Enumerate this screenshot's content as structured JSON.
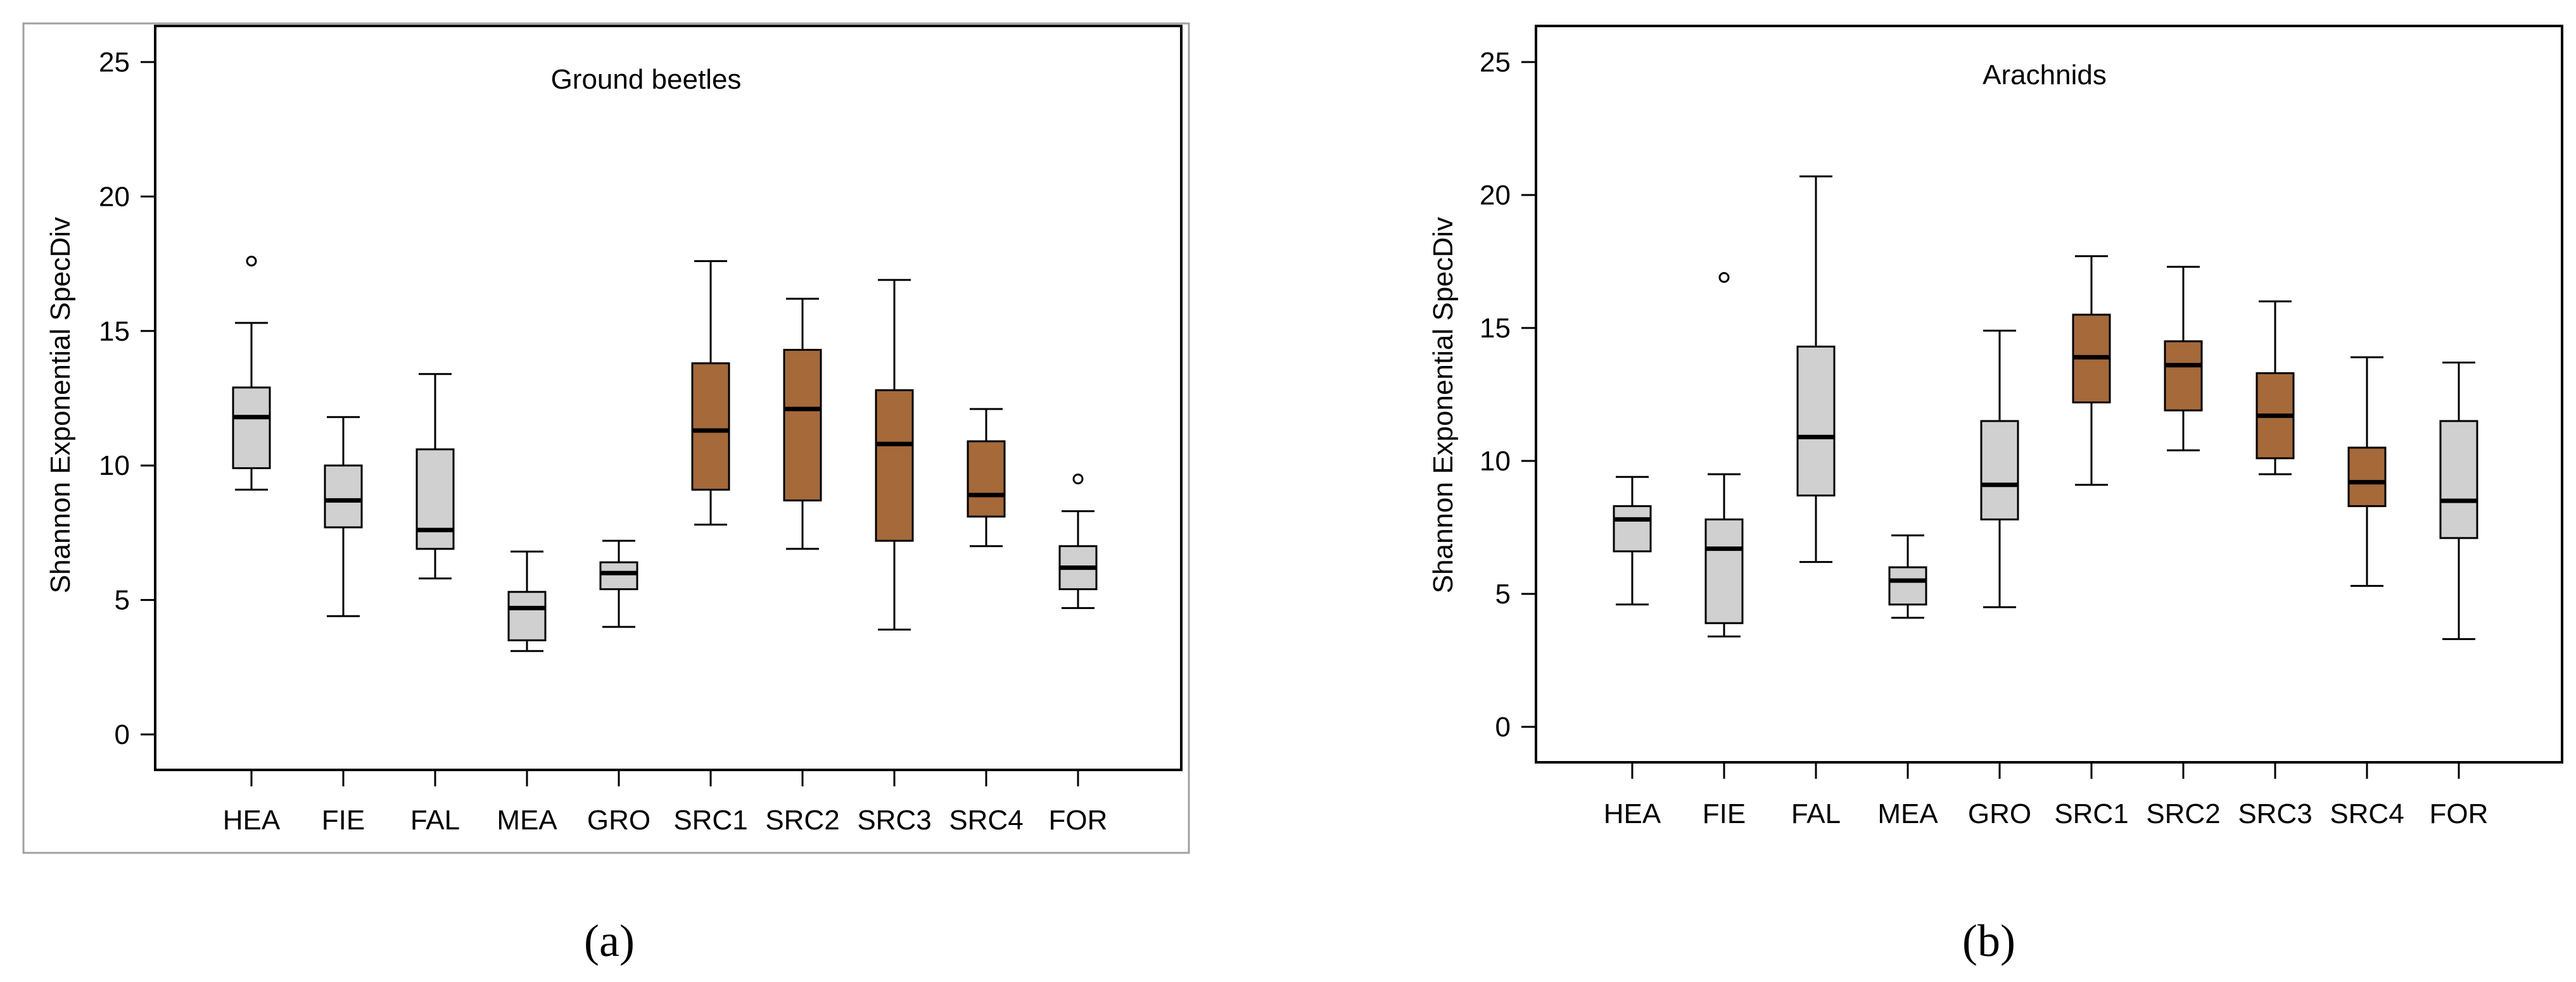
{
  "figure": {
    "captions": [
      "(a)",
      "(b)"
    ]
  },
  "colors": {
    "control": "#d0d0d0",
    "src": "#a5693a",
    "stroke": "#000000",
    "frame": "#a0a0a0"
  },
  "chart_data": [
    {
      "type": "boxplot",
      "title": "Ground beetles",
      "ylabel": "Shannon Exponential SpecDiv",
      "xlabel": "",
      "ylim": [
        0,
        25
      ],
      "yticks": [
        0,
        5,
        10,
        15,
        20,
        25
      ],
      "caption": "(a)",
      "categories": [
        "HEA",
        "FIE",
        "FAL",
        "MEA",
        "GRO",
        "SRC1",
        "SRC2",
        "SRC3",
        "SRC4",
        "FOR"
      ],
      "groups": [
        "control",
        "control",
        "control",
        "control",
        "control",
        "src",
        "src",
        "src",
        "src",
        "control"
      ],
      "boxes": [
        {
          "min": 9.1,
          "q1": 9.9,
          "median": 11.8,
          "q3": 12.9,
          "max": 15.3,
          "outliers": [
            17.6
          ]
        },
        {
          "min": 4.4,
          "q1": 7.7,
          "median": 8.7,
          "q3": 10.0,
          "max": 11.8,
          "outliers": []
        },
        {
          "min": 5.8,
          "q1": 6.9,
          "median": 7.6,
          "q3": 10.6,
          "max": 13.4,
          "outliers": []
        },
        {
          "min": 3.1,
          "q1": 3.5,
          "median": 4.7,
          "q3": 5.3,
          "max": 6.8,
          "outliers": []
        },
        {
          "min": 4.0,
          "q1": 5.4,
          "median": 6.0,
          "q3": 6.4,
          "max": 7.2,
          "outliers": []
        },
        {
          "min": 7.8,
          "q1": 9.1,
          "median": 11.3,
          "q3": 13.8,
          "max": 17.6,
          "outliers": []
        },
        {
          "min": 6.9,
          "q1": 8.7,
          "median": 12.1,
          "q3": 14.3,
          "max": 16.2,
          "outliers": []
        },
        {
          "min": 3.9,
          "q1": 7.2,
          "median": 10.8,
          "q3": 12.8,
          "max": 16.9,
          "outliers": []
        },
        {
          "min": 7.0,
          "q1": 8.1,
          "median": 8.9,
          "q3": 10.9,
          "max": 12.1,
          "outliers": []
        },
        {
          "min": 4.7,
          "q1": 5.4,
          "median": 6.2,
          "q3": 7.0,
          "max": 8.3,
          "outliers": [
            9.5
          ]
        }
      ]
    },
    {
      "type": "boxplot",
      "title": "Arachnids",
      "ylabel": "Shannon Exponential SpecDiv",
      "xlabel": "",
      "ylim": [
        0,
        25
      ],
      "yticks": [
        0,
        5,
        10,
        15,
        20,
        25
      ],
      "caption": "(b)",
      "categories": [
        "HEA",
        "FIE",
        "FAL",
        "MEA",
        "GRO",
        "SRC1",
        "SRC2",
        "SRC3",
        "SRC4",
        "FOR"
      ],
      "groups": [
        "control",
        "control",
        "control",
        "control",
        "control",
        "src",
        "src",
        "src",
        "src",
        "control"
      ],
      "boxes": [
        {
          "min": 4.6,
          "q1": 6.6,
          "median": 7.8,
          "q3": 8.3,
          "max": 9.4,
          "outliers": []
        },
        {
          "min": 3.4,
          "q1": 3.9,
          "median": 6.7,
          "q3": 7.8,
          "max": 9.5,
          "outliers": [
            16.9
          ]
        },
        {
          "min": 6.2,
          "q1": 8.7,
          "median": 10.9,
          "q3": 14.3,
          "max": 20.7,
          "outliers": []
        },
        {
          "min": 4.1,
          "q1": 4.6,
          "median": 5.5,
          "q3": 6.0,
          "max": 7.2,
          "outliers": []
        },
        {
          "min": 4.5,
          "q1": 7.8,
          "median": 9.1,
          "q3": 11.5,
          "max": 14.9,
          "outliers": []
        },
        {
          "min": 9.1,
          "q1": 12.2,
          "median": 13.9,
          "q3": 15.5,
          "max": 17.7,
          "outliers": []
        },
        {
          "min": 10.4,
          "q1": 11.9,
          "median": 13.6,
          "q3": 14.5,
          "max": 17.3,
          "outliers": []
        },
        {
          "min": 9.5,
          "q1": 10.1,
          "median": 11.7,
          "q3": 13.3,
          "max": 16.0,
          "outliers": []
        },
        {
          "min": 5.3,
          "q1": 8.3,
          "median": 9.2,
          "q3": 10.5,
          "max": 13.9,
          "outliers": []
        },
        {
          "min": 3.3,
          "q1": 7.1,
          "median": 8.5,
          "q3": 11.5,
          "max": 13.7,
          "outliers": []
        }
      ]
    }
  ]
}
